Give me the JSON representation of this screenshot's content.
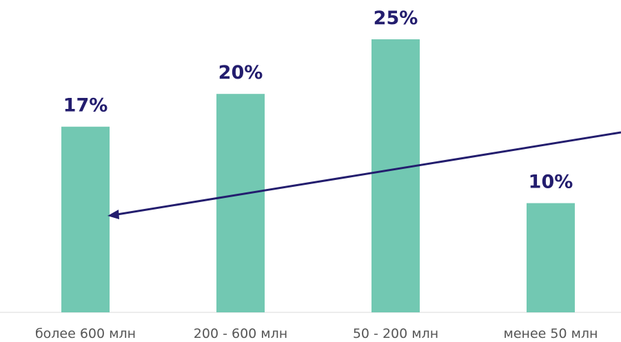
{
  "chart_data": {
    "type": "bar",
    "categories": [
      "более 600 млн",
      "200 - 600 млн",
      "50 - 200 млн",
      "менее 50 млн"
    ],
    "values": [
      17,
      20,
      25,
      10
    ],
    "value_labels": [
      "17%",
      "20%",
      "25%",
      "10%"
    ],
    "ylim": [
      0,
      25
    ],
    "grid": false,
    "legend": "none",
    "colors": {
      "bar": "#72c8b2",
      "value_label": "#231d6e",
      "category_label": "#555555",
      "trend_arrow": "#231d6e"
    },
    "annotation": {
      "type": "arrow",
      "direction": "right-to-left",
      "points_to_category": "более 600 млн"
    }
  }
}
